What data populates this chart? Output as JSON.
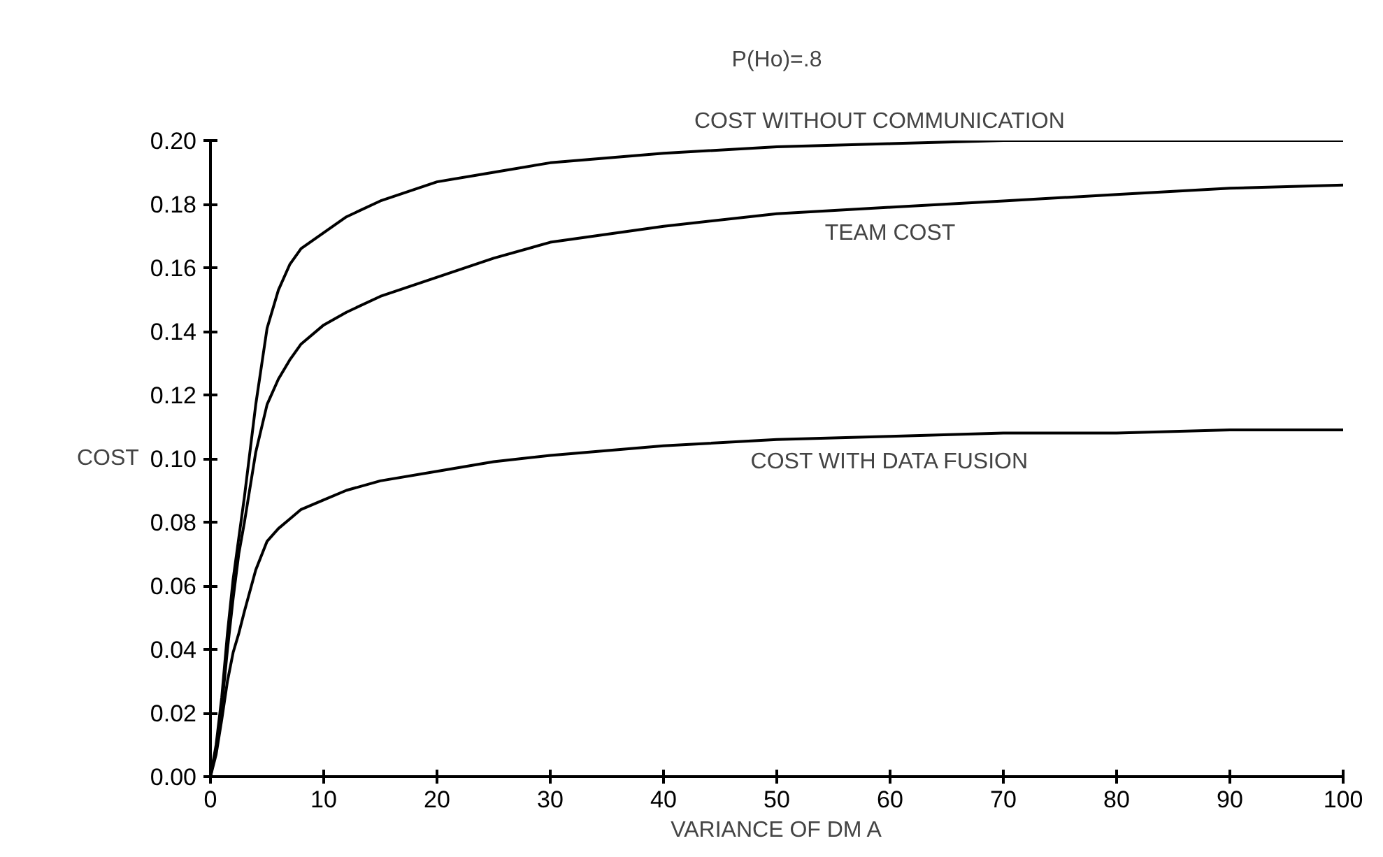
{
  "chart_data": {
    "type": "line",
    "title": "P(Ho)=.8",
    "xlabel": "VARIANCE OF DM A",
    "ylabel": "COST",
    "x": [
      0,
      0.5,
      1,
      1.5,
      2,
      2.5,
      3,
      4,
      5,
      6,
      7,
      8,
      10,
      12,
      15,
      20,
      25,
      30,
      40,
      50,
      60,
      70,
      80,
      90,
      100
    ],
    "series": [
      {
        "name": "COST WITHOUT COMMUNICATION",
        "color": "#000000",
        "values": [
          0,
          0.01,
          0.025,
          0.045,
          0.062,
          0.075,
          0.088,
          0.117,
          0.141,
          0.153,
          0.161,
          0.166,
          0.171,
          0.176,
          0.181,
          0.187,
          0.19,
          0.193,
          0.196,
          0.198,
          0.199,
          0.2,
          0.2,
          0.2,
          0.2
        ]
      },
      {
        "name": "TEAM COST",
        "color": "#000000",
        "values": [
          0,
          0.009,
          0.022,
          0.04,
          0.056,
          0.07,
          0.08,
          0.102,
          0.117,
          0.125,
          0.131,
          0.136,
          0.142,
          0.146,
          0.151,
          0.157,
          0.163,
          0.168,
          0.173,
          0.177,
          0.179,
          0.181,
          0.183,
          0.185,
          0.186
        ]
      },
      {
        "name": "COST WITH DATA FUSION",
        "color": "#000000",
        "values": [
          0,
          0.007,
          0.018,
          0.03,
          0.039,
          0.045,
          0.052,
          0.065,
          0.074,
          0.078,
          0.081,
          0.084,
          0.087,
          0.09,
          0.093,
          0.096,
          0.099,
          0.101,
          0.104,
          0.106,
          0.107,
          0.108,
          0.108,
          0.109,
          0.109
        ]
      }
    ],
    "xlim": [
      0,
      100
    ],
    "ylim": [
      0,
      0.2
    ],
    "xticks": [
      0,
      10,
      20,
      30,
      40,
      50,
      60,
      70,
      80,
      90,
      100
    ],
    "yticks": [
      {
        "value": 0,
        "label": "0.00"
      },
      {
        "value": 0.02,
        "label": "0.02"
      },
      {
        "value": 0.04,
        "label": "0.04"
      },
      {
        "value": 0.06,
        "label": "0.06"
      },
      {
        "value": 0.08,
        "label": "0.08"
      },
      {
        "value": 0.1,
        "label": "0.10"
      },
      {
        "value": 0.12,
        "label": "0.12"
      },
      {
        "value": 0.14,
        "label": "0.14"
      },
      {
        "value": 0.16,
        "label": "0.16"
      },
      {
        "value": 0.18,
        "label": "0.18"
      },
      {
        "value": 0.2,
        "label": "0.20"
      }
    ],
    "grid": false,
    "legend": false,
    "marker": "none",
    "line_style": "solid"
  }
}
